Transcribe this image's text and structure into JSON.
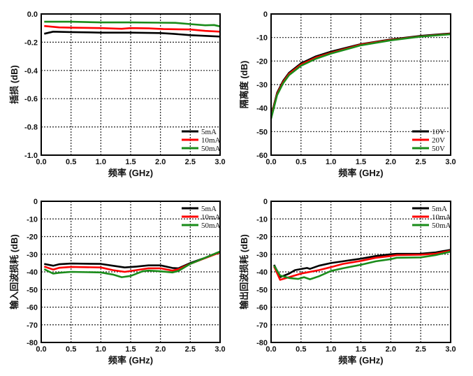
{
  "chart_data": [
    {
      "type": "line",
      "xlabel": "频率 (GHz)",
      "ylabel": "插损 (dB)",
      "xlim": [
        0,
        3.0
      ],
      "ylim": [
        -1.0,
        0.0
      ],
      "xticks": [
        0,
        0.5,
        1.0,
        1.5,
        2.0,
        2.5,
        3.0
      ],
      "xtick_labels": [
        "0.0",
        "0.5",
        "1.0",
        "1.5",
        "2.0",
        "2.5",
        "3.0"
      ],
      "yticks": [
        0,
        -0.2,
        -0.4,
        -0.6,
        -0.8,
        -1.0
      ],
      "ytick_labels": [
        "0.0",
        "-0.2",
        "-0.4",
        "-0.6",
        "-0.8",
        "-1.0"
      ],
      "grid": true,
      "legend_position": "bottom-right",
      "series": [
        {
          "name": "5mA",
          "color": "#000000",
          "points": [
            [
              0.05,
              -0.14
            ],
            [
              0.2,
              -0.125
            ],
            [
              0.5,
              -0.128
            ],
            [
              0.8,
              -0.13
            ],
            [
              1.0,
              -0.132
            ],
            [
              1.5,
              -0.132
            ],
            [
              2.0,
              -0.135
            ],
            [
              2.2,
              -0.14
            ],
            [
              2.5,
              -0.15
            ],
            [
              3.0,
              -0.16
            ]
          ]
        },
        {
          "name": "10mA",
          "color": "#ff0000",
          "points": [
            [
              0.05,
              -0.085
            ],
            [
              0.3,
              -0.095
            ],
            [
              0.5,
              -0.097
            ],
            [
              1.0,
              -0.1
            ],
            [
              1.35,
              -0.105
            ],
            [
              1.5,
              -0.1
            ],
            [
              1.8,
              -0.102
            ],
            [
              2.05,
              -0.107
            ],
            [
              2.5,
              -0.11
            ],
            [
              2.75,
              -0.12
            ],
            [
              3.0,
              -0.125
            ]
          ]
        },
        {
          "name": "50mA",
          "color": "#1a8c1a",
          "points": [
            [
              0.05,
              -0.055
            ],
            [
              0.5,
              -0.055
            ],
            [
              1.0,
              -0.06
            ],
            [
              1.5,
              -0.06
            ],
            [
              2.0,
              -0.062
            ],
            [
              2.25,
              -0.063
            ],
            [
              2.5,
              -0.072
            ],
            [
              2.75,
              -0.08
            ],
            [
              2.9,
              -0.078
            ],
            [
              3.0,
              -0.088
            ]
          ]
        }
      ]
    },
    {
      "type": "line",
      "xlabel": "频率 (GHz)",
      "ylabel": "隔离度 (dB)",
      "xlim": [
        0,
        3.0
      ],
      "ylim": [
        -60,
        0
      ],
      "xticks": [
        0,
        0.5,
        1.0,
        1.5,
        2.0,
        2.5,
        3.0
      ],
      "xtick_labels": [
        "0.0",
        "0.5",
        "1.0",
        "1.5",
        "2.0",
        "2.5",
        "3.0"
      ],
      "yticks": [
        0,
        -10,
        -20,
        -30,
        -40,
        -50,
        -60
      ],
      "ytick_labels": [
        "0",
        "-10",
        "-20",
        "-30",
        "-40",
        "-50",
        "-60"
      ],
      "grid": true,
      "legend_position": "bottom-right",
      "series": [
        {
          "name": "10V",
          "color": "#000000",
          "points": [
            [
              0.0,
              -43.5
            ],
            [
              0.1,
              -33.5
            ],
            [
              0.2,
              -28.5
            ],
            [
              0.3,
              -25
            ],
            [
              0.5,
              -21
            ],
            [
              0.75,
              -18
            ],
            [
              1.0,
              -16
            ],
            [
              1.5,
              -12.8
            ],
            [
              2.0,
              -10.8
            ],
            [
              2.5,
              -9.3
            ],
            [
              3.0,
              -8.3
            ]
          ]
        },
        {
          "name": "20V",
          "color": "#ff0000",
          "points": [
            [
              0.0,
              -44
            ],
            [
              0.1,
              -34
            ],
            [
              0.2,
              -29
            ],
            [
              0.3,
              -25.5
            ],
            [
              0.5,
              -21.5
            ],
            [
              0.75,
              -18.5
            ],
            [
              1.0,
              -16.5
            ],
            [
              1.5,
              -13
            ],
            [
              2.0,
              -11
            ],
            [
              2.5,
              -9.5
            ],
            [
              3.0,
              -8.5
            ]
          ]
        },
        {
          "name": "50V",
          "color": "#1a8c1a",
          "points": [
            [
              0.0,
              -44.5
            ],
            [
              0.1,
              -34.5
            ],
            [
              0.2,
              -29.5
            ],
            [
              0.3,
              -26
            ],
            [
              0.5,
              -22
            ],
            [
              0.75,
              -19
            ],
            [
              1.0,
              -16.8
            ],
            [
              1.5,
              -13.3
            ],
            [
              2.0,
              -11.2
            ],
            [
              2.5,
              -9.6
            ],
            [
              3.0,
              -8.6
            ]
          ]
        }
      ]
    },
    {
      "type": "line",
      "xlabel": "频率 (GHz)",
      "ylabel": "输入回波损耗 (dB)",
      "xlim": [
        0,
        3.0
      ],
      "ylim": [
        -80,
        0
      ],
      "xticks": [
        0,
        0.5,
        1.0,
        1.5,
        2.0,
        2.5,
        3.0
      ],
      "xtick_labels": [
        "0.0",
        "0.5",
        "1.0",
        "1.5",
        "2.0",
        "2.5",
        "3.0"
      ],
      "yticks": [
        0,
        -10,
        -20,
        -30,
        -40,
        -50,
        -60,
        -70,
        -80
      ],
      "ytick_labels": [
        "0",
        "-10",
        "-20",
        "-30",
        "-40",
        "-50",
        "-60",
        "-70",
        "-80"
      ],
      "grid": true,
      "legend_position": "top-right",
      "series": [
        {
          "name": "5mA",
          "color": "#000000",
          "points": [
            [
              0.05,
              -35.5
            ],
            [
              0.2,
              -36.5
            ],
            [
              0.3,
              -35.7
            ],
            [
              0.5,
              -35.3
            ],
            [
              1.0,
              -35.5
            ],
            [
              1.2,
              -36.5
            ],
            [
              1.4,
              -37.5
            ],
            [
              1.6,
              -37
            ],
            [
              1.8,
              -36.3
            ],
            [
              2.0,
              -36.3
            ],
            [
              2.2,
              -37.8
            ],
            [
              2.3,
              -38
            ],
            [
              2.5,
              -35
            ],
            [
              2.75,
              -32
            ],
            [
              3.0,
              -28.5
            ]
          ]
        },
        {
          "name": "10mA",
          "color": "#ff0000",
          "points": [
            [
              0.05,
              -37
            ],
            [
              0.2,
              -38.7
            ],
            [
              0.3,
              -37.7
            ],
            [
              0.5,
              -37.2
            ],
            [
              1.0,
              -37.5
            ],
            [
              1.2,
              -39
            ],
            [
              1.4,
              -40
            ],
            [
              1.6,
              -39
            ],
            [
              1.8,
              -38
            ],
            [
              2.0,
              -38
            ],
            [
              2.2,
              -39.3
            ],
            [
              2.3,
              -38.5
            ],
            [
              2.5,
              -35.5
            ],
            [
              2.75,
              -32.2
            ],
            [
              3.0,
              -29
            ]
          ]
        },
        {
          "name": "50mA",
          "color": "#1a8c1a",
          "points": [
            [
              0.05,
              -38.5
            ],
            [
              0.2,
              -41
            ],
            [
              0.3,
              -40.5
            ],
            [
              0.5,
              -40
            ],
            [
              1.0,
              -40.3
            ],
            [
              1.2,
              -41.5
            ],
            [
              1.35,
              -43
            ],
            [
              1.5,
              -42.3
            ],
            [
              1.7,
              -39.7
            ],
            [
              1.8,
              -39.3
            ],
            [
              2.0,
              -39.7
            ],
            [
              2.2,
              -40.3
            ],
            [
              2.3,
              -39.5
            ],
            [
              2.5,
              -35.5
            ],
            [
              2.75,
              -32
            ],
            [
              3.0,
              -28.5
            ]
          ]
        }
      ]
    },
    {
      "type": "line",
      "xlabel": "频率 (GHz)",
      "ylabel": "输出回波损耗 (dB)",
      "xlim": [
        0,
        3.0
      ],
      "ylim": [
        -80,
        0
      ],
      "xticks": [
        0,
        0.5,
        1.0,
        1.5,
        2.0,
        2.5,
        3.0
      ],
      "xtick_labels": [
        "0.0",
        "0.5",
        "1.0",
        "1.5",
        "2.0",
        "2.5",
        "3.0"
      ],
      "yticks": [
        0,
        -10,
        -20,
        -30,
        -40,
        -50,
        -60,
        -70,
        -80
      ],
      "ytick_labels": [
        "0",
        "-10",
        "-20",
        "-30",
        "-40",
        "-50",
        "-60",
        "-70",
        "-80"
      ],
      "grid": true,
      "legend_position": "top-right",
      "series": [
        {
          "name": "5mA",
          "color": "#000000",
          "points": [
            [
              0.05,
              -36
            ],
            [
              0.15,
              -43
            ],
            [
              0.3,
              -41
            ],
            [
              0.4,
              -39
            ],
            [
              0.6,
              -37.8
            ],
            [
              0.65,
              -38.3
            ],
            [
              0.8,
              -36.5
            ],
            [
              1.0,
              -35
            ],
            [
              1.2,
              -34
            ],
            [
              1.5,
              -32.5
            ],
            [
              1.75,
              -31
            ],
            [
              2.0,
              -30
            ],
            [
              2.1,
              -29.8
            ],
            [
              2.5,
              -29.7
            ],
            [
              2.75,
              -29
            ],
            [
              3.0,
              -27.5
            ]
          ]
        },
        {
          "name": "10mA",
          "color": "#ff0000",
          "points": [
            [
              0.05,
              -37
            ],
            [
              0.15,
              -44.5
            ],
            [
              0.3,
              -43
            ],
            [
              0.5,
              -41
            ],
            [
              0.6,
              -40.3
            ],
            [
              0.8,
              -39
            ],
            [
              1.0,
              -37.3
            ],
            [
              1.2,
              -35.5
            ],
            [
              1.5,
              -33.8
            ],
            [
              1.75,
              -32
            ],
            [
              2.0,
              -31
            ],
            [
              2.1,
              -30.5
            ],
            [
              2.5,
              -30.3
            ],
            [
              2.75,
              -29.7
            ],
            [
              3.0,
              -28
            ]
          ]
        },
        {
          "name": "50mA",
          "color": "#1a8c1a",
          "points": [
            [
              0.05,
              -36.5
            ],
            [
              0.15,
              -42
            ],
            [
              0.3,
              -43.5
            ],
            [
              0.45,
              -44
            ],
            [
              0.55,
              -43
            ],
            [
              0.65,
              -44.2
            ],
            [
              0.8,
              -42.5
            ],
            [
              1.0,
              -39.5
            ],
            [
              1.2,
              -38
            ],
            [
              1.5,
              -36
            ],
            [
              1.75,
              -34
            ],
            [
              2.0,
              -32.8
            ],
            [
              2.1,
              -32
            ],
            [
              2.5,
              -31.8
            ],
            [
              2.75,
              -30.5
            ],
            [
              3.0,
              -28.5
            ]
          ]
        }
      ]
    }
  ]
}
